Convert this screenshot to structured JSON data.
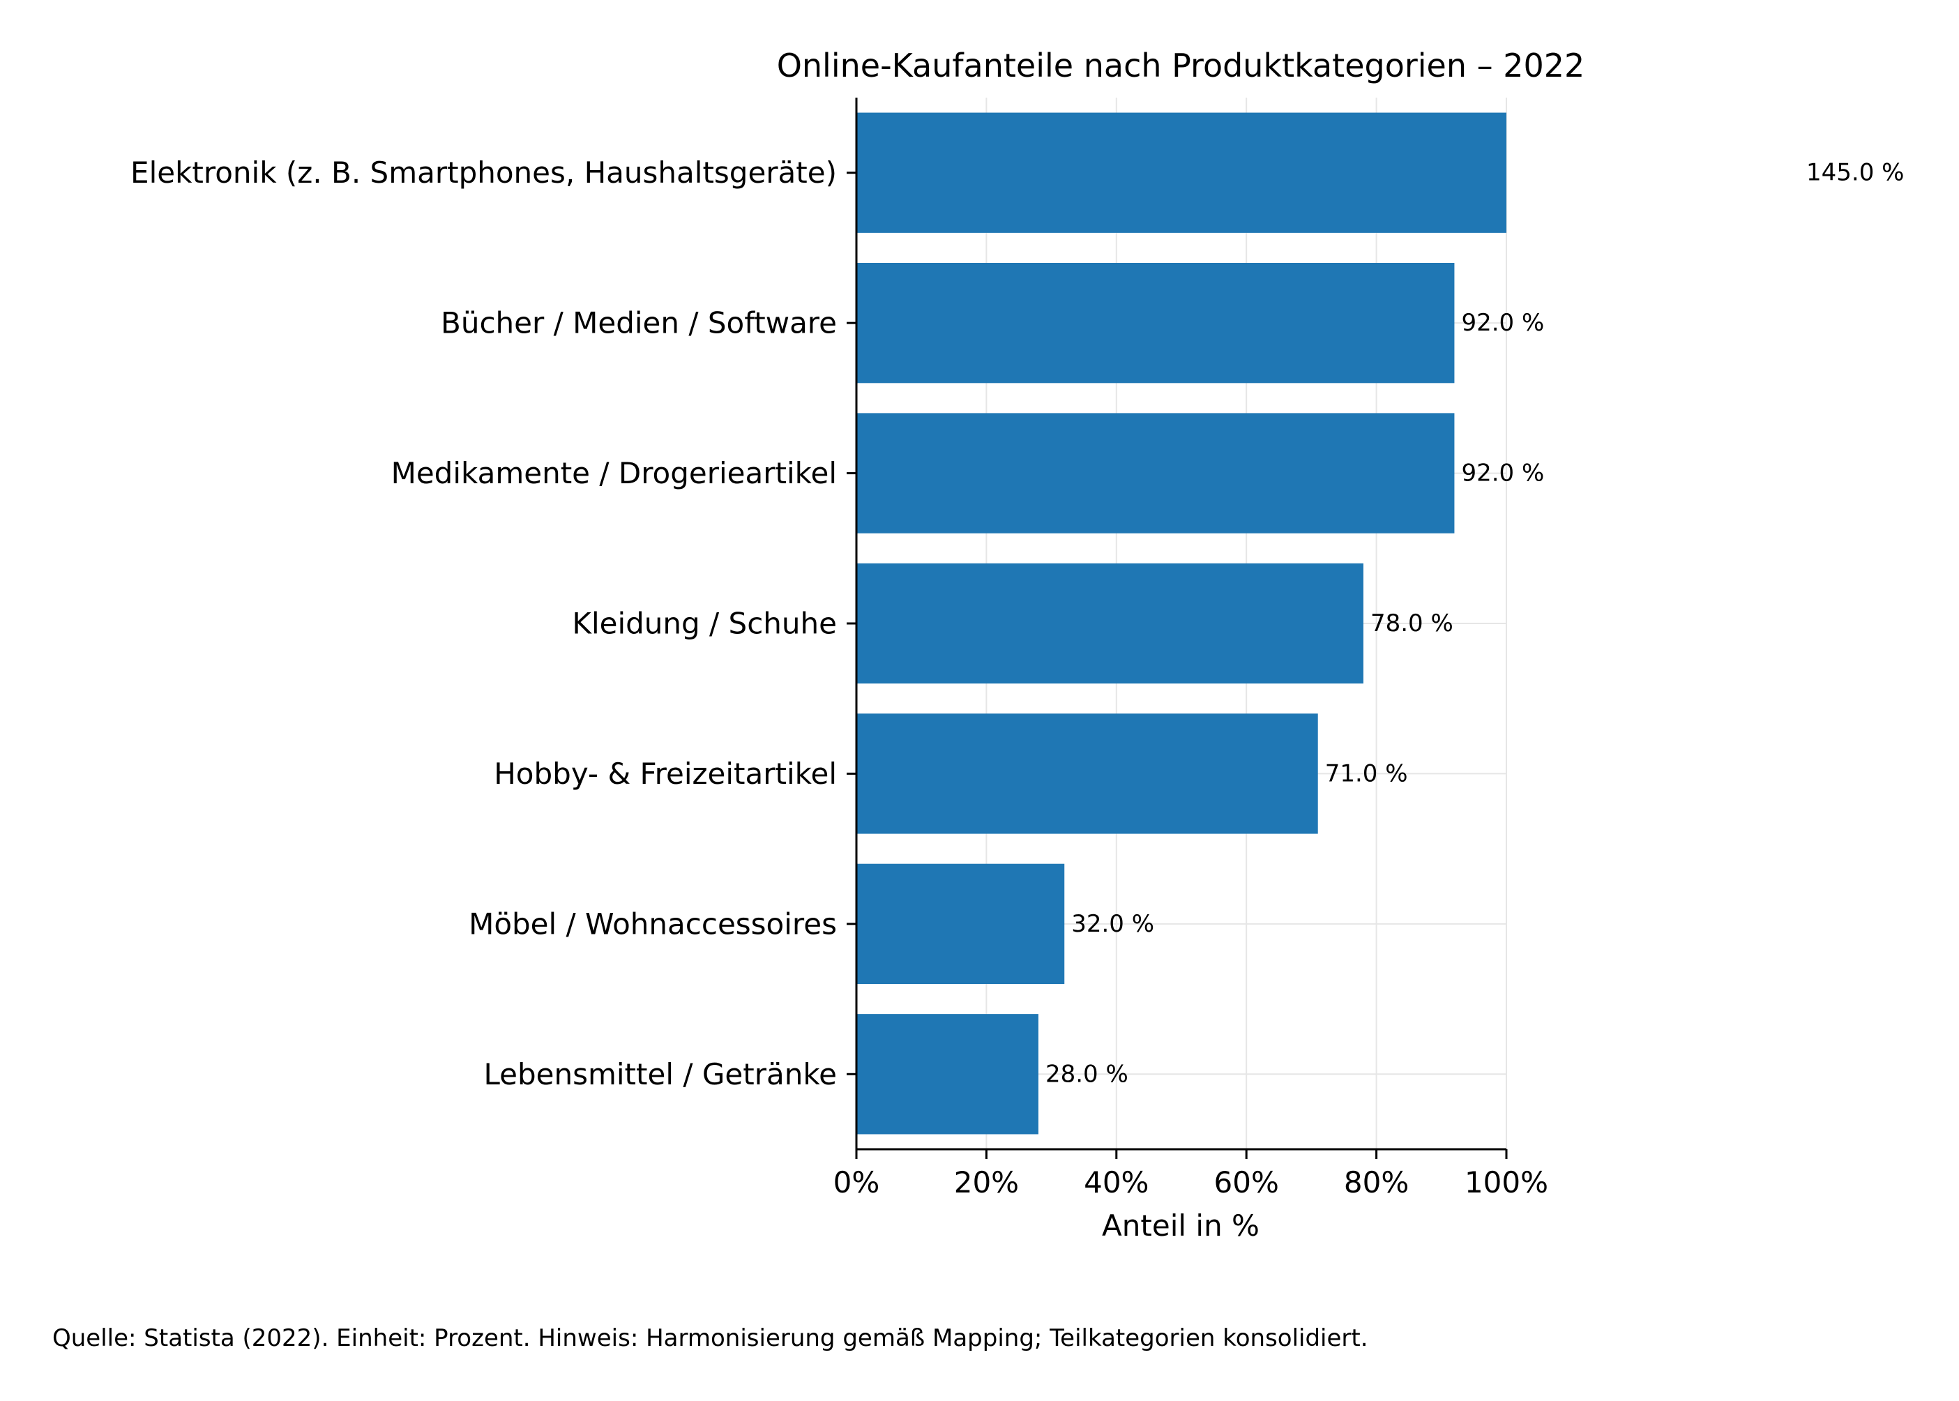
{
  "chart_data": {
    "type": "bar",
    "orientation": "horizontal",
    "title": "Online-Kaufanteile nach Produktkategorien – 2022",
    "xlabel": "Anteil in %",
    "ylabel": "",
    "xlim": [
      0,
      100
    ],
    "x_ticks": [
      0,
      20,
      40,
      60,
      80,
      100
    ],
    "x_tick_labels": [
      "0%",
      "20%",
      "40%",
      "60%",
      "80%",
      "100%"
    ],
    "grid": true,
    "bar_color": "#1f77b4",
    "categories": [
      "Elektronik (z. B. Smartphones, Haushaltsgeräte)",
      "Bücher / Medien / Software",
      "Medikamente / Drogerieartikel",
      "Kleidung / Schuhe",
      "Hobby- & Freizeitartikel",
      "Möbel / Wohnaccessoires",
      "Lebensmittel / Getränke"
    ],
    "values": [
      145.0,
      92.0,
      92.0,
      78.0,
      71.0,
      32.0,
      28.0
    ],
    "value_labels": [
      "145.0 %",
      "92.0 %",
      "92.0 %",
      "78.0 %",
      "71.0 %",
      "32.0 %",
      "28.0 %"
    ]
  },
  "source_note": "Quelle: Statista (2022). Einheit: Prozent. Hinweis: Harmonisierung gemäß Mapping; Teilkategorien konsolidiert."
}
